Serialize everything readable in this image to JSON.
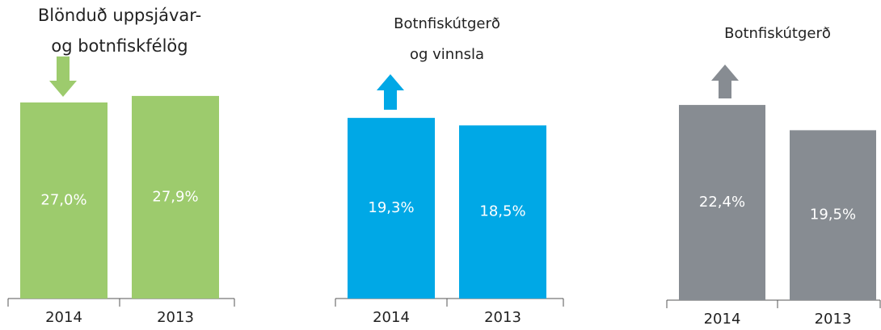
{
  "chart_data": [
    {
      "type": "bar",
      "title": [
        "Blönduð uppsjávar-",
        "og botnfiskfélög"
      ],
      "categories": [
        "2014",
        "2013"
      ],
      "values": [
        27.0,
        27.9
      ],
      "value_labels": [
        "27,0%",
        "27,9%"
      ],
      "color": "#9dcb6d"
    },
    {
      "type": "bar",
      "title": [
        "Botnfiskútgerð",
        "og vinnsla"
      ],
      "categories": [
        "2014",
        "2013"
      ],
      "values": [
        19.3,
        18.5
      ],
      "value_labels": [
        "19,3%",
        "18,5%"
      ],
      "color": "#00a8e6"
    },
    {
      "type": "bar",
      "title": [
        "Botnfiskútgerð"
      ],
      "categories": [
        "2014",
        "2013"
      ],
      "values": [
        22.4,
        19.5
      ],
      "value_labels": [
        "22,4%",
        "19,5%"
      ],
      "color": "#878c92"
    }
  ]
}
